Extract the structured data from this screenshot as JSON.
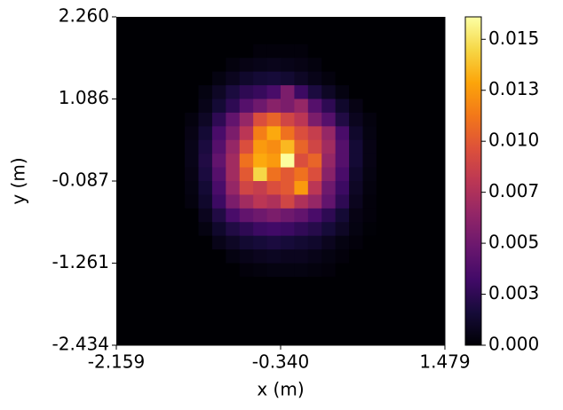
{
  "chart_data": {
    "type": "heatmap",
    "colormap": "inferno",
    "xlabel": "x (m)",
    "ylabel": "y (m)",
    "xlim": [
      -2.159,
      1.479
    ],
    "ylim": [
      -2.434,
      2.26
    ],
    "xticks": [
      -2.159,
      {
        "value": -0.34,
        "label": "-0.340"
      },
      1.479
    ],
    "yticks": [
      -2.434,
      -1.261,
      -0.087,
      1.086,
      {
        "value": 2.26,
        "label": "2.260"
      }
    ],
    "clim": [
      0,
      0.0161
    ],
    "cticks": [
      {
        "value": 0,
        "label": "0.000"
      },
      {
        "value": 0.0025,
        "label": "0.003"
      },
      {
        "value": 0.005,
        "label": "0.005"
      },
      {
        "value": 0.0075,
        "label": "0.007"
      },
      {
        "value": 0.01,
        "label": "0.010"
      },
      {
        "value": 0.0125,
        "label": "0.013"
      },
      {
        "value": 0.015,
        "label": "0.015"
      }
    ],
    "z": [
      [
        0,
        0,
        0,
        0,
        0,
        0,
        0,
        0,
        0,
        0,
        0,
        0,
        0,
        0,
        0,
        0,
        0,
        0,
        0,
        0,
        0,
        0,
        0,
        0
      ],
      [
        0,
        0,
        0,
        0,
        0,
        0,
        0,
        0,
        0,
        0,
        0,
        0,
        0,
        0,
        0,
        0,
        0,
        0,
        0,
        0,
        0,
        0,
        0,
        0
      ],
      [
        0,
        0,
        0,
        0,
        0,
        0,
        0,
        0,
        0,
        0,
        0.0002,
        0.0002,
        0.0002,
        0.0002,
        0,
        0,
        0,
        0,
        0,
        0,
        0,
        0,
        0,
        0
      ],
      [
        0,
        0,
        0,
        0,
        0,
        0,
        0,
        0,
        0.0003,
        0.0005,
        0.0006,
        0.0007,
        0.0006,
        0.0005,
        0.0003,
        0,
        0,
        0,
        0,
        0,
        0,
        0,
        0,
        0
      ],
      [
        0,
        0,
        0,
        0,
        0,
        0,
        0,
        0.0004,
        0.0008,
        0.0012,
        0.0015,
        0.0016,
        0.0014,
        0.001,
        0.0006,
        0.0003,
        0,
        0,
        0,
        0,
        0,
        0,
        0,
        0
      ],
      [
        0,
        0,
        0,
        0,
        0,
        0,
        0.0004,
        0.001,
        0.0018,
        0.0025,
        0.0028,
        0.0035,
        0.0055,
        0.003,
        0.0018,
        0.001,
        0.0004,
        0,
        0,
        0,
        0,
        0,
        0,
        0
      ],
      [
        0,
        0,
        0,
        0,
        0,
        0,
        0.0006,
        0.0015,
        0.0025,
        0.004,
        0.005,
        0.006,
        0.0055,
        0.0065,
        0.004,
        0.0025,
        0.0012,
        0.0005,
        0,
        0,
        0,
        0,
        0,
        0
      ],
      [
        0,
        0,
        0,
        0,
        0,
        0.0003,
        0.001,
        0.0025,
        0.0045,
        0.0065,
        0.0095,
        0.0105,
        0.009,
        0.008,
        0.0055,
        0.004,
        0.002,
        0.0008,
        0.0003,
        0,
        0,
        0,
        0,
        0
      ],
      [
        0,
        0,
        0,
        0,
        0,
        0.0005,
        0.0015,
        0.0035,
        0.0055,
        0.008,
        0.0115,
        0.013,
        0.011,
        0.0095,
        0.0085,
        0.0065,
        0.0035,
        0.0012,
        0.0004,
        0,
        0,
        0,
        0,
        0
      ],
      [
        0,
        0,
        0,
        0,
        0,
        0.0006,
        0.0018,
        0.004,
        0.0065,
        0.0095,
        0.0125,
        0.012,
        0.0135,
        0.0105,
        0.009,
        0.007,
        0.004,
        0.0015,
        0.0005,
        0,
        0,
        0,
        0,
        0
      ],
      [
        0,
        0,
        0,
        0,
        0,
        0.0006,
        0.002,
        0.0045,
        0.007,
        0.011,
        0.013,
        0.0125,
        0.016,
        0.0095,
        0.0105,
        0.0065,
        0.004,
        0.0015,
        0.0005,
        0,
        0,
        0,
        0,
        0
      ],
      [
        0,
        0,
        0,
        0,
        0,
        0.0005,
        0.0018,
        0.004,
        0.007,
        0.01,
        0.0145,
        0.011,
        0.01,
        0.011,
        0.0095,
        0.006,
        0.0035,
        0.0012,
        0.0004,
        0,
        0,
        0,
        0,
        0
      ],
      [
        0,
        0,
        0,
        0,
        0,
        0.0004,
        0.0015,
        0.0035,
        0.0065,
        0.009,
        0.0085,
        0.0095,
        0.01,
        0.0125,
        0.008,
        0.005,
        0.003,
        0.001,
        0.0003,
        0,
        0,
        0,
        0,
        0
      ],
      [
        0,
        0,
        0,
        0,
        0,
        0.0003,
        0.0012,
        0.003,
        0.0055,
        0.007,
        0.008,
        0.0075,
        0.009,
        0.0075,
        0.0065,
        0.0045,
        0.0025,
        0.0008,
        0.0002,
        0,
        0,
        0,
        0,
        0
      ],
      [
        0,
        0,
        0,
        0,
        0,
        0,
        0.0008,
        0.002,
        0.0035,
        0.0045,
        0.005,
        0.0055,
        0.005,
        0.0045,
        0.0035,
        0.0025,
        0.0015,
        0.0005,
        0.0002,
        0,
        0,
        0,
        0,
        0
      ],
      [
        0,
        0,
        0,
        0,
        0,
        0,
        0.0004,
        0.0012,
        0.002,
        0.0025,
        0.003,
        0.0032,
        0.003,
        0.0026,
        0.0022,
        0.0016,
        0.001,
        0.0004,
        0.0001,
        0,
        0,
        0,
        0,
        0
      ],
      [
        0,
        0,
        0,
        0,
        0,
        0,
        0,
        0.0006,
        0.001,
        0.0014,
        0.0016,
        0.0018,
        0.0016,
        0.0014,
        0.0012,
        0.0008,
        0.0004,
        0.0002,
        0,
        0,
        0,
        0,
        0,
        0
      ],
      [
        0,
        0,
        0,
        0,
        0,
        0,
        0,
        0,
        0.0004,
        0.0006,
        0.0008,
        0.0009,
        0.0008,
        0.0008,
        0.0006,
        0.0004,
        0.0002,
        0,
        0,
        0,
        0,
        0,
        0,
        0
      ],
      [
        0,
        0,
        0,
        0,
        0,
        0,
        0,
        0,
        0,
        0.0002,
        0.0003,
        0.0004,
        0.0004,
        0.0004,
        0.0003,
        0.0002,
        0,
        0,
        0,
        0,
        0,
        0,
        0,
        0
      ],
      [
        0,
        0,
        0,
        0,
        0,
        0,
        0,
        0,
        0,
        0,
        0,
        0,
        0,
        0,
        0,
        0,
        0,
        0,
        0,
        0,
        0,
        0,
        0,
        0
      ],
      [
        0,
        0,
        0,
        0,
        0,
        0,
        0,
        0,
        0,
        0,
        0,
        0,
        0,
        0,
        0,
        0,
        0,
        0,
        0,
        0,
        0,
        0,
        0,
        0
      ],
      [
        0,
        0,
        0,
        0,
        0,
        0,
        0,
        0,
        0,
        0,
        0,
        0,
        0,
        0,
        0,
        0,
        0,
        0,
        0,
        0,
        0,
        0,
        0,
        0
      ],
      [
        0,
        0,
        0,
        0,
        0,
        0,
        0,
        0,
        0,
        0,
        0,
        0,
        0,
        0,
        0,
        0,
        0,
        0,
        0,
        0,
        0,
        0,
        0,
        0
      ],
      [
        0,
        0,
        0,
        0,
        0,
        0,
        0,
        0,
        0,
        0,
        0,
        0,
        0,
        0,
        0,
        0,
        0,
        0,
        0,
        0,
        0,
        0,
        0,
        0
      ]
    ]
  }
}
